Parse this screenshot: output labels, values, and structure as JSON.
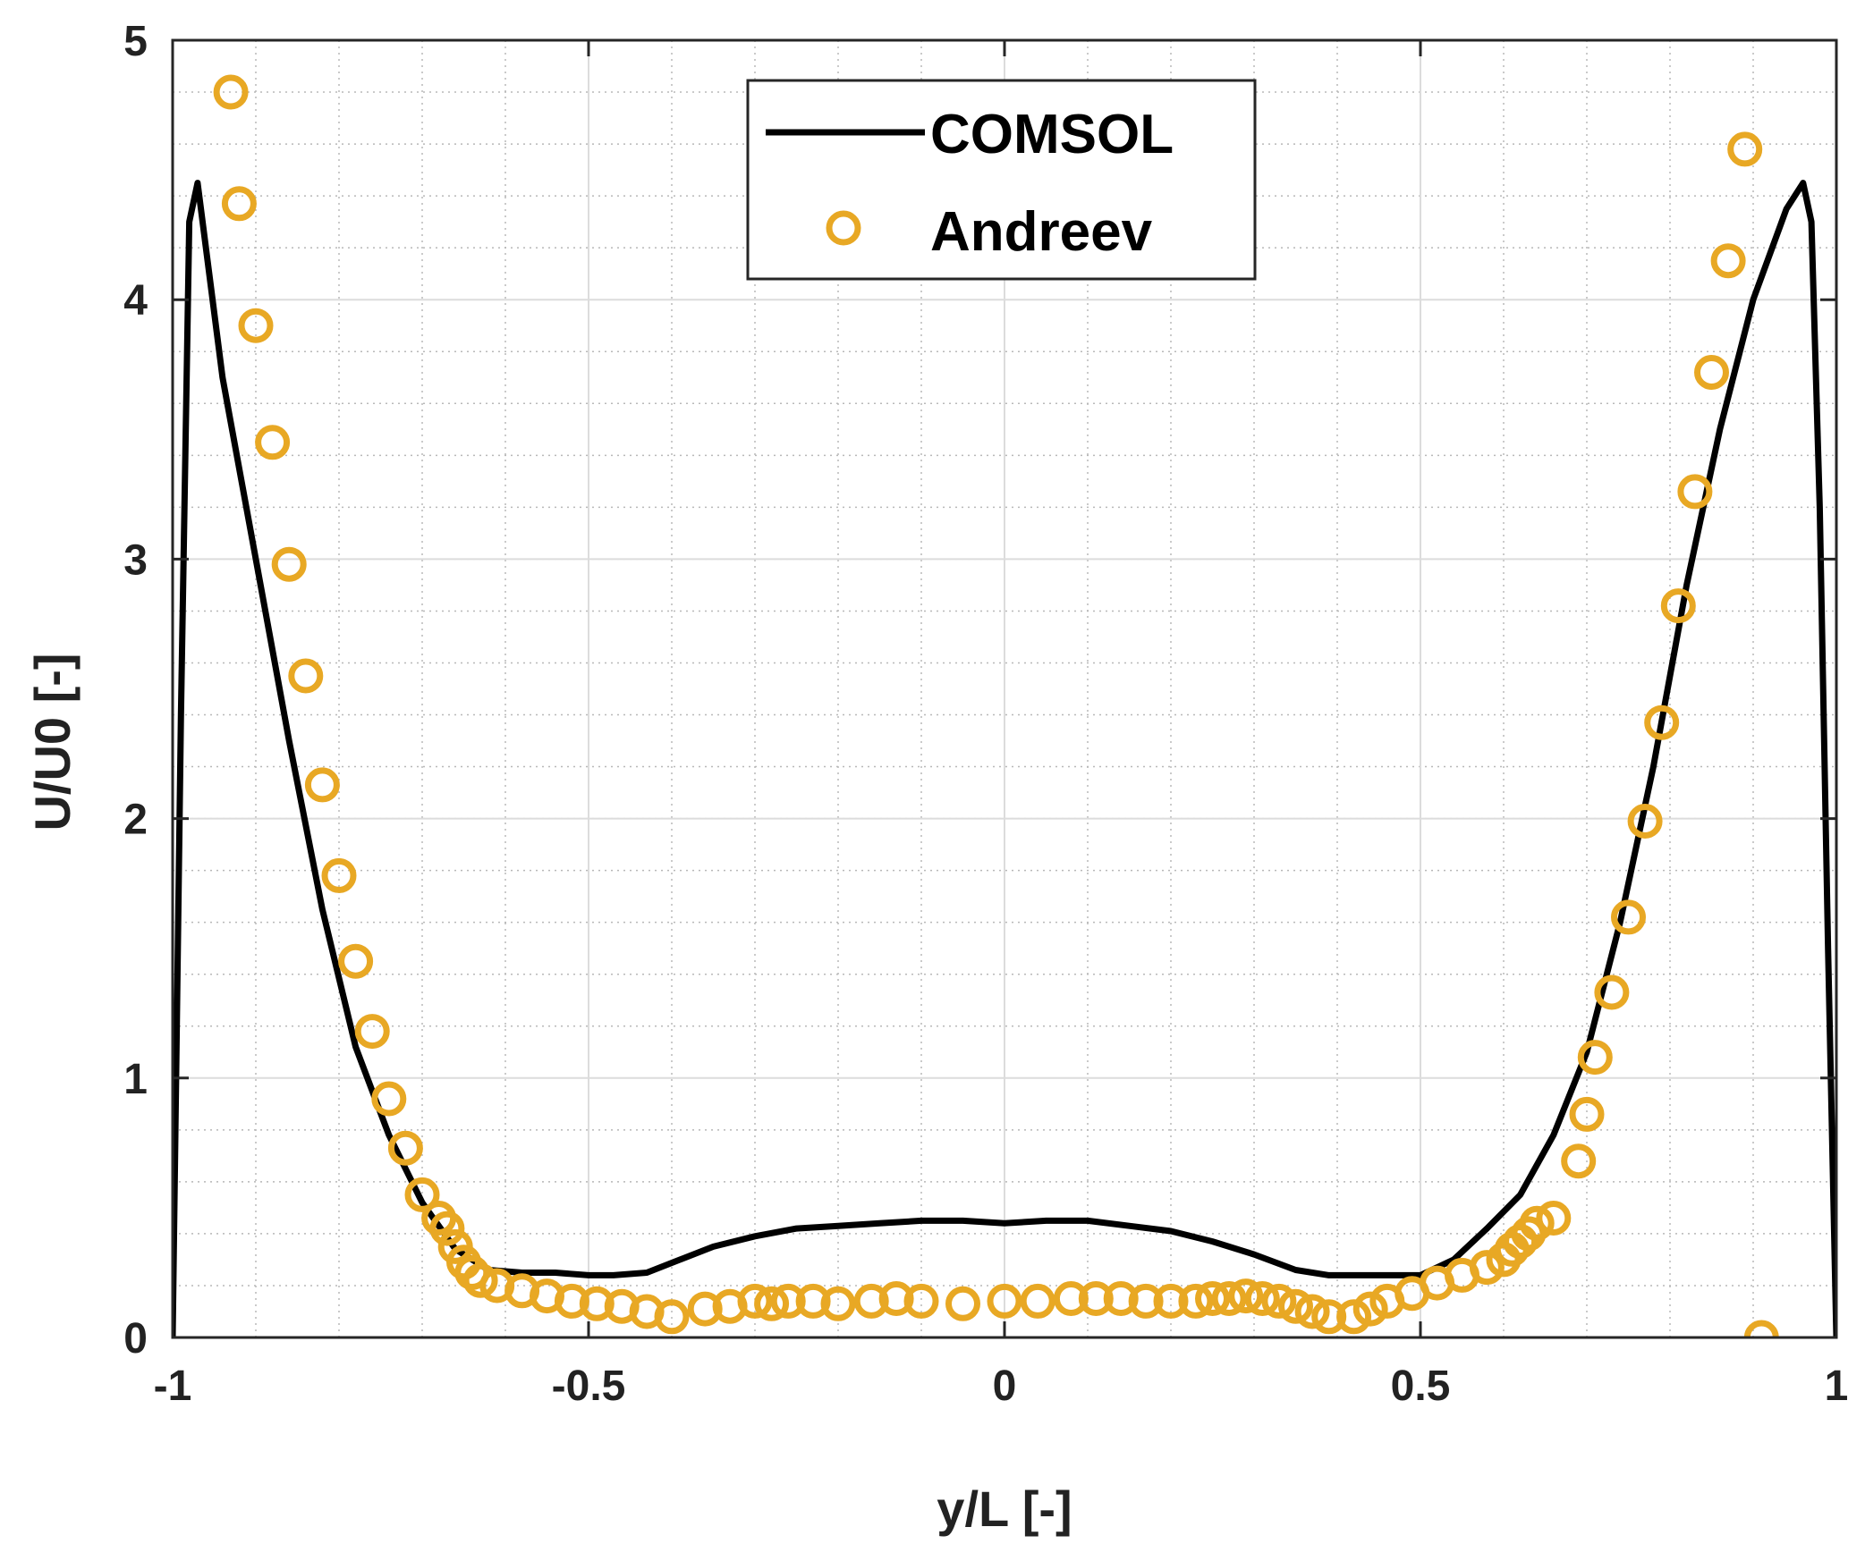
{
  "chart_data": {
    "type": "line",
    "title": "",
    "xlabel": "y/L [-]",
    "ylabel": "U/U0 [-]",
    "xlim": [
      -1,
      1
    ],
    "ylim": [
      0,
      5
    ],
    "grid": true,
    "minor_grid": true,
    "legend_position": "top-center",
    "x_ticks": [
      -1,
      -0.5,
      0,
      0.5,
      1
    ],
    "x_tick_labels": [
      "-1",
      "-0.5",
      "0",
      "0.5",
      "1"
    ],
    "y_ticks": [
      0,
      1,
      2,
      3,
      4,
      5
    ],
    "y_tick_labels": [
      "0",
      "1",
      "2",
      "3",
      "4",
      "5"
    ],
    "series": [
      {
        "name": "COMSOL",
        "style": "line",
        "color": "#000000",
        "x": [
          -1.0,
          -0.99,
          -0.98,
          -0.97,
          -0.96,
          -0.94,
          -0.9,
          -0.86,
          -0.82,
          -0.78,
          -0.74,
          -0.7,
          -0.66,
          -0.62,
          -0.58,
          -0.54,
          -0.5,
          -0.47,
          -0.43,
          -0.39,
          -0.35,
          -0.3,
          -0.25,
          -0.2,
          -0.15,
          -0.1,
          -0.05,
          0.0,
          0.05,
          0.1,
          0.15,
          0.2,
          0.25,
          0.3,
          0.35,
          0.39,
          0.43,
          0.47,
          0.5,
          0.54,
          0.58,
          0.62,
          0.66,
          0.7,
          0.74,
          0.78,
          0.82,
          0.86,
          0.9,
          0.94,
          0.96,
          0.97,
          0.98,
          0.99,
          1.0
        ],
        "y": [
          0.0,
          2.4,
          4.3,
          4.45,
          4.2,
          3.7,
          3.0,
          2.3,
          1.65,
          1.12,
          0.78,
          0.52,
          0.34,
          0.26,
          0.25,
          0.25,
          0.24,
          0.24,
          0.25,
          0.3,
          0.35,
          0.39,
          0.42,
          0.43,
          0.44,
          0.45,
          0.45,
          0.44,
          0.45,
          0.45,
          0.43,
          0.41,
          0.37,
          0.32,
          0.26,
          0.24,
          0.24,
          0.24,
          0.24,
          0.3,
          0.42,
          0.55,
          0.78,
          1.1,
          1.6,
          2.2,
          2.9,
          3.5,
          4.0,
          4.35,
          4.45,
          4.3,
          3.2,
          1.5,
          0.0
        ]
      },
      {
        "name": "Andreev",
        "style": "markers",
        "marker": "circle",
        "color": "#E8A824",
        "x": [
          -0.93,
          -0.92,
          -0.9,
          -0.88,
          -0.86,
          -0.84,
          -0.82,
          -0.8,
          -0.78,
          -0.76,
          -0.74,
          -0.72,
          -0.7,
          -0.68,
          -0.67,
          -0.66,
          -0.65,
          -0.64,
          -0.63,
          -0.61,
          -0.58,
          -0.55,
          -0.52,
          -0.49,
          -0.46,
          -0.43,
          -0.4,
          -0.36,
          -0.33,
          -0.3,
          -0.28,
          -0.26,
          -0.23,
          -0.2,
          -0.16,
          -0.13,
          -0.1,
          -0.05,
          0.0,
          0.04,
          0.08,
          0.11,
          0.14,
          0.17,
          0.2,
          0.23,
          0.25,
          0.27,
          0.29,
          0.31,
          0.33,
          0.35,
          0.37,
          0.39,
          0.42,
          0.44,
          0.46,
          0.49,
          0.52,
          0.55,
          0.58,
          0.6,
          0.61,
          0.62,
          0.63,
          0.64,
          0.66,
          0.69,
          0.7,
          0.71,
          0.73,
          0.75,
          0.77,
          0.79,
          0.81,
          0.83,
          0.85,
          0.87,
          0.89,
          0.91
        ],
        "y": [
          4.8,
          4.37,
          3.9,
          3.45,
          2.98,
          2.55,
          2.13,
          1.78,
          1.45,
          1.18,
          0.92,
          0.73,
          0.55,
          0.46,
          0.42,
          0.35,
          0.29,
          0.25,
          0.22,
          0.2,
          0.18,
          0.16,
          0.14,
          0.13,
          0.12,
          0.1,
          0.08,
          0.11,
          0.12,
          0.14,
          0.13,
          0.14,
          0.14,
          0.13,
          0.14,
          0.15,
          0.14,
          0.13,
          0.14,
          0.14,
          0.15,
          0.15,
          0.15,
          0.14,
          0.14,
          0.14,
          0.15,
          0.15,
          0.16,
          0.15,
          0.14,
          0.12,
          0.1,
          0.08,
          0.08,
          0.11,
          0.14,
          0.17,
          0.21,
          0.24,
          0.27,
          0.3,
          0.34,
          0.37,
          0.4,
          0.44,
          0.46,
          0.68,
          0.86,
          1.08,
          1.33,
          1.62,
          1.99,
          2.37,
          2.82,
          3.26,
          3.72,
          4.15,
          4.58,
          0.0
        ]
      }
    ]
  }
}
